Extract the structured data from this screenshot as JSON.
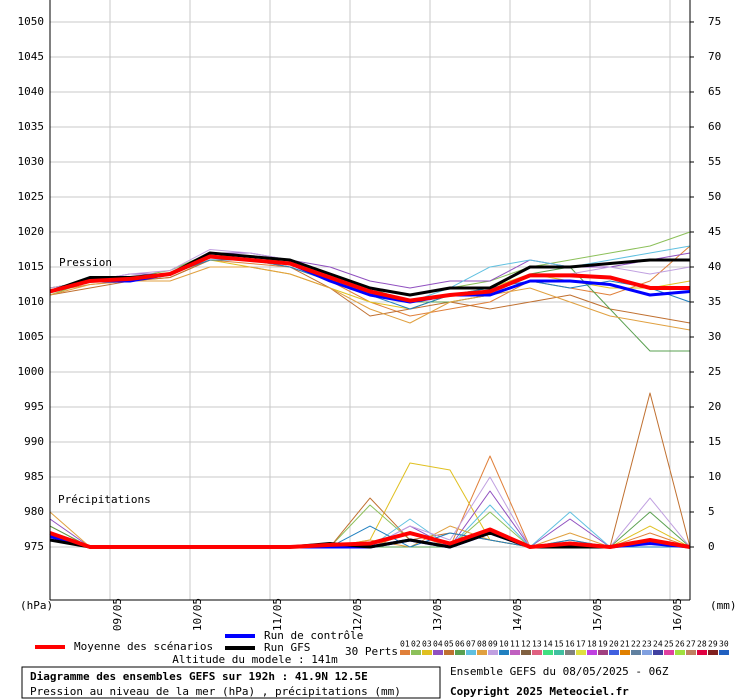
{
  "chart_data": {
    "type": "line",
    "pressure_label": "Pression",
    "precip_label": "Précipitations",
    "yaxis_label": "(hPa)",
    "y2axis_label": "(mm)",
    "x": [
      0,
      12,
      24,
      36,
      48,
      60,
      72,
      84,
      96,
      108,
      120,
      132,
      144,
      156,
      168,
      180,
      192
    ],
    "xlim": [
      0,
      192
    ],
    "xticks": [
      {
        "value": 18,
        "label": "09/05"
      },
      {
        "value": 42,
        "label": "10/05"
      },
      {
        "value": 66,
        "label": "11/05"
      },
      {
        "value": 90,
        "label": "12/05"
      },
      {
        "value": 114,
        "label": "13/05"
      },
      {
        "value": 138,
        "label": "14/05"
      },
      {
        "value": 162,
        "label": "15/05"
      },
      {
        "value": 186,
        "label": "16/05"
      }
    ],
    "ylim": [
      967.43,
      1053.14
    ],
    "yticks": [
      1050,
      1045,
      1040,
      1035,
      1030,
      1025,
      1020,
      1015,
      1010,
      1005,
      1000,
      995,
      990,
      985,
      980,
      975
    ],
    "y2lim": [
      -7.57,
      78.14
    ],
    "y2ticks": [
      75,
      70,
      65,
      60,
      55,
      50,
      45,
      40,
      35,
      30,
      25,
      20,
      15,
      10,
      5,
      0
    ],
    "grid": true,
    "series": [
      {
        "name": "Run de contrôle",
        "color": "#0000ff",
        "pressure": [
          1011.5,
          1013,
          1013,
          1014,
          1016.5,
          1016,
          1015.5,
          1013,
          1011,
          1010,
          1011,
          1011,
          1013,
          1013,
          1012.5,
          1011,
          1011.5
        ],
        "precip": [
          1.5,
          0,
          0,
          0,
          0,
          0,
          0,
          0,
          0,
          1,
          0,
          2,
          0,
          0.5,
          0,
          0.5,
          0
        ]
      },
      {
        "name": "Run GFS",
        "color": "#000000",
        "pressure": [
          1011.5,
          1013.5,
          1013.5,
          1014,
          1017,
          1016.5,
          1016,
          1014,
          1012,
          1011,
          1012,
          1012,
          1015,
          1015,
          1015.5,
          1016,
          1016
        ],
        "precip": [
          1,
          0,
          0,
          0,
          0,
          0,
          0,
          0.5,
          0,
          1,
          0,
          2,
          0,
          0,
          0,
          1,
          0
        ]
      },
      {
        "name": "Moyenne des scénarios",
        "color": "#ff0000",
        "pressure": [
          1011.5,
          1013,
          1013.3,
          1014,
          1016.5,
          1016,
          1015.5,
          1013.5,
          1011.5,
          1010.2,
          1011,
          1011.5,
          1013.8,
          1013.8,
          1013.5,
          1012,
          1012
        ],
        "precip": [
          2,
          0,
          0,
          0,
          0,
          0,
          0,
          0.3,
          0.5,
          2,
          0.5,
          2.5,
          0,
          0.5,
          0,
          1,
          0
        ]
      }
    ],
    "perts_label": "30 Perts.",
    "members": [
      {
        "name": "01",
        "color": "#e0803a",
        "pressure": [
          1011.5,
          1012.5,
          1013,
          1013.5,
          1016,
          1015.5,
          1015,
          1013,
          1010,
          1008,
          1009,
          1010,
          1013,
          1012,
          1011,
          1013,
          1018
        ],
        "precip": [
          3,
          0,
          0,
          0,
          0,
          0,
          0,
          0,
          0,
          2,
          0,
          13,
          0,
          1,
          0,
          2,
          0
        ]
      },
      {
        "name": "02",
        "color": "#8cc05a",
        "pressure": [
          1011,
          1013,
          1013.5,
          1014.5,
          1017,
          1016.5,
          1016,
          1014,
          1012,
          1011,
          1012,
          1013,
          1015,
          1016,
          1017,
          1018,
          1020
        ],
        "precip": [
          2,
          0,
          0,
          0,
          0,
          0,
          0,
          0,
          6,
          1,
          0,
          5,
          0,
          0,
          0,
          0,
          0
        ]
      },
      {
        "name": "03",
        "color": "#e0c020",
        "pressure": [
          1012,
          1013,
          1013,
          1014,
          1016,
          1015,
          1014,
          1012,
          1010,
          1009,
          1011,
          1012,
          1014,
          1013,
          1012,
          1012,
          1013
        ],
        "precip": [
          1,
          0,
          0,
          0,
          0,
          0,
          0,
          0,
          1,
          12,
          11,
          1,
          0,
          0,
          0,
          3,
          0
        ]
      },
      {
        "name": "04",
        "color": "#9050c0",
        "pressure": [
          1011.5,
          1013,
          1014,
          1014,
          1017,
          1017,
          1016,
          1015,
          1013,
          1012,
          1013,
          1013,
          1016,
          1015,
          1015,
          1016,
          1017
        ],
        "precip": [
          4,
          0,
          0,
          0,
          0,
          0,
          0,
          0,
          0,
          3,
          0,
          8,
          0,
          4,
          0,
          0,
          0
        ]
      },
      {
        "name": "05",
        "color": "#c07030",
        "pressure": [
          1011,
          1012,
          1013,
          1013.5,
          1016,
          1016,
          1015,
          1012,
          1008,
          1009,
          1010,
          1009,
          1010,
          1011,
          1009,
          1008,
          1007
        ],
        "precip": [
          2,
          0,
          0,
          0,
          0,
          0,
          0,
          0,
          7,
          1,
          2,
          1,
          0,
          0,
          0,
          22,
          0
        ]
      },
      {
        "name": "06",
        "color": "#5aa050",
        "pressure": [
          1012,
          1013,
          1013,
          1014,
          1017,
          1016,
          1016,
          1014,
          1012,
          1010,
          1010,
          1011,
          1014,
          1015,
          1009,
          1003,
          1003
        ],
        "precip": [
          3,
          0,
          0,
          0,
          0,
          0,
          0,
          0,
          0,
          0,
          0,
          2,
          0,
          0,
          0,
          5,
          0
        ]
      },
      {
        "name": "07",
        "color": "#60c0e0",
        "pressure": [
          1011.5,
          1013,
          1013.5,
          1014,
          1016.5,
          1016,
          1015.5,
          1013,
          1011,
          1010,
          1012,
          1015,
          1016,
          1015,
          1016,
          1017,
          1018
        ],
        "precip": [
          1,
          0,
          0,
          0,
          0,
          0,
          0,
          0,
          0,
          4,
          0,
          6,
          0,
          5,
          0,
          1,
          0
        ]
      },
      {
        "name": "08",
        "color": "#e0a040",
        "pressure": [
          1011,
          1012.5,
          1013,
          1013,
          1015,
          1015,
          1014,
          1012,
          1009,
          1007,
          1010,
          1011,
          1012,
          1010,
          1008,
          1007,
          1006
        ],
        "precip": [
          5,
          0,
          0,
          0,
          0,
          0,
          0,
          0,
          1,
          0,
          3,
          1,
          0,
          2,
          0,
          0,
          0
        ]
      },
      {
        "name": "09",
        "color": "#c0a0e0",
        "pressure": [
          1012,
          1013,
          1014,
          1014.5,
          1017.5,
          1017,
          1016,
          1014,
          1011,
          1010,
          1011,
          1011,
          1014,
          1014,
          1015,
          1014,
          1015
        ],
        "precip": [
          2,
          0,
          0,
          0,
          0,
          0,
          0,
          0,
          0,
          3,
          1,
          10,
          0,
          0,
          0,
          7,
          0
        ]
      },
      {
        "name": "10",
        "color": "#2080c0",
        "pressure": [
          1011.5,
          1013,
          1013,
          1014,
          1016,
          1016,
          1015,
          1013,
          1011,
          1009,
          1011,
          1012,
          1013,
          1012,
          1013,
          1012,
          1010
        ],
        "precip": [
          1,
          0,
          0,
          0,
          0,
          0,
          0,
          0,
          3,
          0,
          2,
          1,
          0,
          1,
          0,
          0,
          0
        ]
      },
      {
        "name": "11",
        "color": "#c060c0"
      },
      {
        "name": "12",
        "color": "#806040"
      },
      {
        "name": "13",
        "color": "#e06080"
      },
      {
        "name": "14",
        "color": "#40e080"
      },
      {
        "name": "15",
        "color": "#40c0a0"
      },
      {
        "name": "16",
        "color": "#808080"
      },
      {
        "name": "17",
        "color": "#e0e040"
      },
      {
        "name": "18",
        "color": "#c040e0"
      },
      {
        "name": "19",
        "color": "#a04080"
      },
      {
        "name": "20",
        "color": "#4060e0"
      },
      {
        "name": "21",
        "color": "#e08000"
      },
      {
        "name": "22",
        "color": "#6080a0"
      },
      {
        "name": "23",
        "color": "#80a0e0"
      },
      {
        "name": "24",
        "color": "#4040a0"
      },
      {
        "name": "25",
        "color": "#e040a0"
      },
      {
        "name": "26",
        "color": "#a0e040"
      },
      {
        "name": "27",
        "color": "#c08060"
      },
      {
        "name": "28",
        "color": "#e00040"
      },
      {
        "name": "29",
        "color": "#802020"
      },
      {
        "name": "30",
        "color": "#2060c0"
      }
    ],
    "altitude": "Altitude du modele : 141m",
    "title": "Diagramme des ensembles GEFS sur 192h : 41.9N 12.5E",
    "subtitle": "Pression au niveau de la mer (hPa) , précipitations (mm)",
    "run_info": "Ensemble GEFS du 08/05/2025 - 06Z",
    "copyright": "Copyright 2025 Meteociel.fr"
  }
}
